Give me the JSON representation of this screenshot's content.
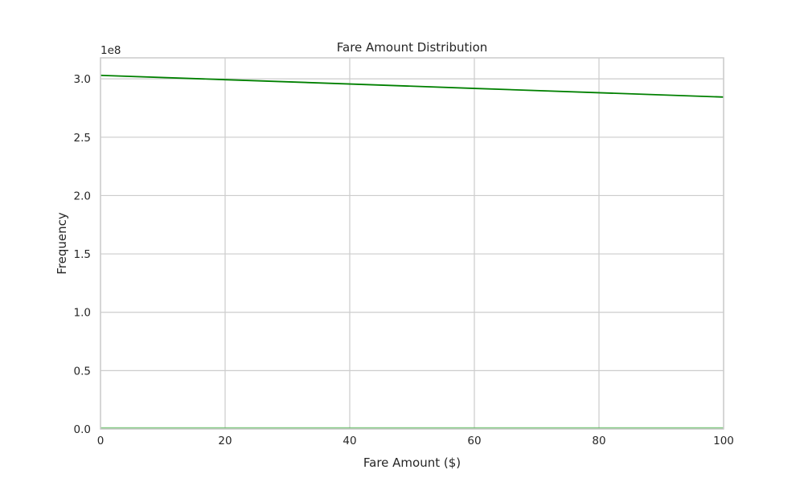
{
  "chart_data": {
    "type": "line",
    "title": "Fare Amount Distribution",
    "xlabel": "Fare Amount ($)",
    "ylabel": "Frequency",
    "y_offset_label": "1e8",
    "xlim": [
      0,
      100
    ],
    "ylim": [
      0,
      318000000
    ],
    "x_ticks": [
      0,
      20,
      40,
      60,
      80,
      100
    ],
    "x_tick_labels": [
      "0",
      "20",
      "40",
      "60",
      "80",
      "100"
    ],
    "y_ticks": [
      0,
      50000000,
      100000000,
      150000000,
      200000000,
      250000000,
      300000000
    ],
    "y_tick_labels": [
      "0.0",
      "0.5",
      "1.0",
      "1.5",
      "2.0",
      "2.5",
      "3.0"
    ],
    "grid": true,
    "series": [
      {
        "kind": "line",
        "color": "#008000",
        "x": [
          0,
          20,
          40,
          60,
          80,
          100
        ],
        "y": [
          303000000,
          299300000,
          295600000,
          291800000,
          288100000,
          284400000
        ]
      },
      {
        "kind": "hist",
        "color": "#5cb85c",
        "bins": [
          {
            "x0": 0,
            "x1": 100,
            "count": 1500000
          }
        ]
      }
    ]
  }
}
